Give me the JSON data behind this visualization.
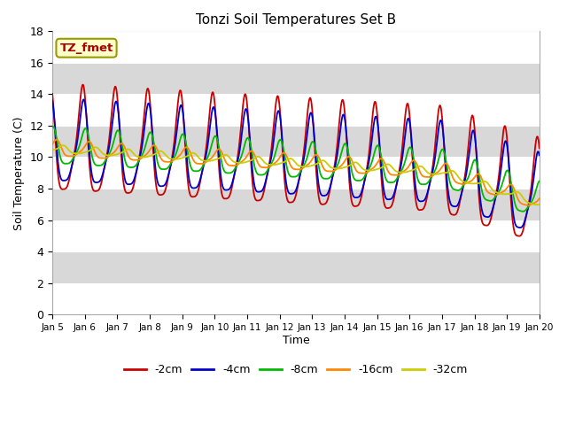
{
  "title": "Tonzi Soil Temperatures Set B",
  "xlabel": "Time",
  "ylabel": "Soil Temperature (C)",
  "ylim": [
    0,
    18
  ],
  "annotation": "TZ_fmet",
  "bg_color": "#d8d8d8",
  "tick_labels": [
    "Jan 5",
    "Jan 6",
    "Jan 7",
    "Jan 8",
    "Jan 9",
    "Jan 10",
    "Jan 11",
    "Jan 12",
    "Jan 13",
    "Jan 14",
    "Jan 15",
    "Jan 16",
    "Jan 17",
    "Jan 18",
    "Jan 19",
    "Jan 20"
  ],
  "lines": [
    {
      "label": "-2cm",
      "color": "#cc0000",
      "depth_factor": 1.0,
      "amp": 4.8,
      "phase": 0.0,
      "smooth": 1.0
    },
    {
      "label": "-4cm",
      "color": "#0000cc",
      "depth_factor": 0.85,
      "amp": 3.8,
      "phase": 0.15,
      "smooth": 1.2
    },
    {
      "label": "-8cm",
      "color": "#00bb00",
      "depth_factor": 0.65,
      "amp": 1.8,
      "phase": 0.5,
      "smooth": 2.0
    },
    {
      "label": "-16cm",
      "color": "#ff8800",
      "depth_factor": 0.55,
      "amp": 0.85,
      "phase": 1.2,
      "smooth": 3.0
    },
    {
      "label": "-32cm",
      "color": "#cccc00",
      "depth_factor": 0.45,
      "amp": 0.45,
      "phase": 2.5,
      "smooth": 5.0
    }
  ],
  "yticks": [
    0,
    2,
    4,
    6,
    8,
    10,
    12,
    14,
    16,
    18
  ],
  "band_colors": [
    "white",
    "#d8d8d8"
  ],
  "band_edges": [
    0,
    2,
    4,
    6,
    8,
    10,
    12,
    14,
    16,
    18
  ]
}
